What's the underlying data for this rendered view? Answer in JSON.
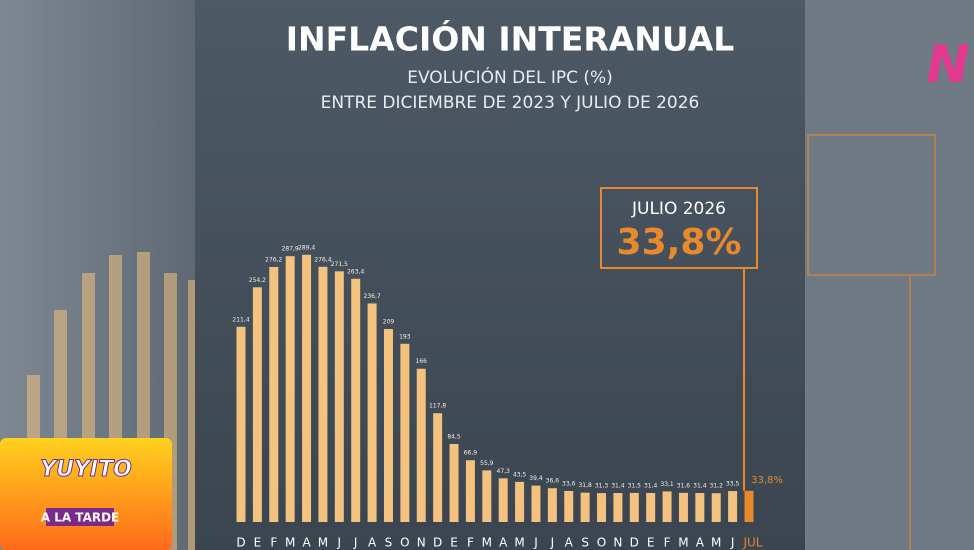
{
  "chart_data": {
    "type": "bar",
    "title": "INFLACIÓN INTERANUAL",
    "subtitle": [
      "EVOLUCIÓN DEL IPC (%)",
      "ENTRE DICIEMBRE DE 2023 Y JULIO DE 2026"
    ],
    "categories": [
      "D",
      "E",
      "F",
      "M",
      "A",
      "M",
      "J",
      "J",
      "A",
      "S",
      "O",
      "N",
      "D",
      "E",
      "F",
      "M",
      "A",
      "M",
      "J",
      "J",
      "A",
      "S",
      "O",
      "N",
      "D",
      "E",
      "F",
      "M",
      "A",
      "M",
      "J",
      "JUL"
    ],
    "values": [
      211.4,
      254.2,
      276.2,
      287.9,
      289.4,
      276.4,
      271.5,
      263.4,
      236.7,
      209,
      193,
      166,
      117.8,
      84.5,
      66.9,
      55.9,
      47.3,
      43.5,
      39.4,
      36.6,
      33.6,
      31.8,
      31.3,
      31.4,
      31.5,
      31.4,
      33.1,
      31.6,
      31.4,
      31.2,
      33.5,
      33.8
    ],
    "value_labels": [
      "211,4",
      "254,2",
      "276,2",
      "287,9",
      "289,4",
      "276,4",
      "271,5",
      "263,4",
      "236,7",
      "209",
      "193",
      "166",
      "117,8",
      "84,5",
      "66,9",
      "55,9",
      "47,3",
      "43,5",
      "39,4",
      "36,6",
      "33,6",
      "31,8",
      "31,3",
      "31,4",
      "31,5",
      "31,4",
      "33,1",
      "31,6",
      "31,4",
      "31,2",
      "33,5",
      "33,8%"
    ],
    "color": "#f2c27e",
    "colors": [
      "#f2c27e",
      "#f2c27e",
      "#f2c27e",
      "#f2c27e",
      "#f2c27e",
      "#f2c27e",
      "#f2c27e",
      "#f2c27e",
      "#f2c27e",
      "#f2c27e",
      "#f2c27e",
      "#f2c27e",
      "#f2c27e",
      "#f2c27e",
      "#f2c27e",
      "#f2c27e",
      "#f2c27e",
      "#f2c27e",
      "#f2c27e",
      "#f2c27e",
      "#f2c27e",
      "#f2c27e",
      "#f2c27e",
      "#f2c27e",
      "#f2c27e",
      "#f2c27e",
      "#f2c27e",
      "#f2c27e",
      "#f2c27e",
      "#f2c27e",
      "#f2c27e",
      "#e8892c"
    ],
    "ylim": [
      0,
      300
    ],
    "callout": {
      "label": "JULIO 2026",
      "value": 33.8,
      "value_label": "33,8%",
      "color": "#e8892c"
    }
  },
  "overlay": {
    "show_logo": [
      "YUYITO",
      "A LA TARDE"
    ],
    "channel_logo": "N"
  }
}
